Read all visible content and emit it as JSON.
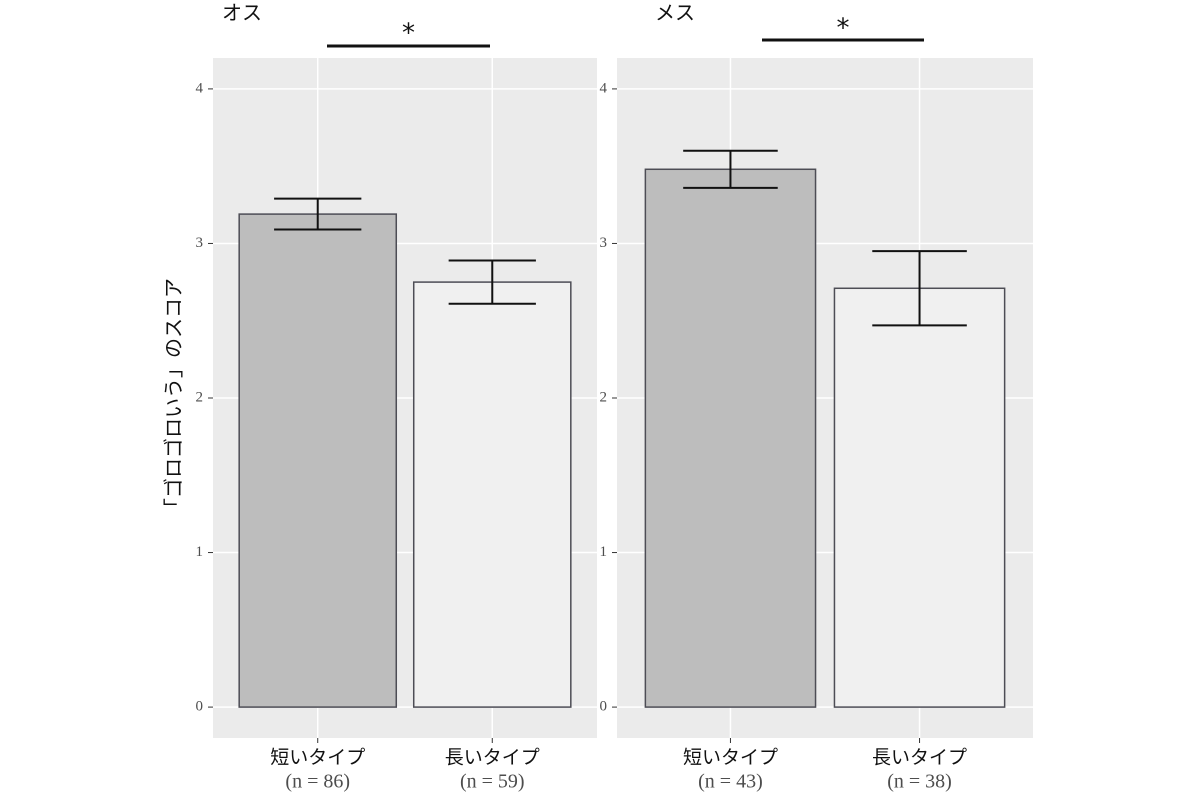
{
  "chart_data": [
    {
      "type": "bar",
      "title": "オス",
      "y_label": "「ゴロゴロいう」のスコア",
      "categories": [
        "短いタイプ",
        "長いタイプ"
      ],
      "sample_labels": [
        "(n = 86)",
        "(n = 59)"
      ],
      "values": [
        3.19,
        2.75
      ],
      "errors": [
        0.1,
        0.14
      ],
      "colors": [
        "#bdbdbd",
        "#f0f0f0"
      ],
      "ylim": [
        -0.2,
        4.2
      ],
      "yticks": [
        0,
        1,
        2,
        3,
        4
      ],
      "grid": true,
      "annotation": "*"
    },
    {
      "type": "bar",
      "title": "メス",
      "categories": [
        "短いタイプ",
        "長いタイプ"
      ],
      "sample_labels": [
        "(n = 43)",
        "(n = 38)"
      ],
      "values": [
        3.48,
        2.71
      ],
      "errors": [
        0.12,
        0.24
      ],
      "colors": [
        "#bdbdbd",
        "#f0f0f0"
      ],
      "ylim": [
        -0.2,
        4.2
      ],
      "yticks": [
        0,
        1,
        2,
        3,
        4
      ],
      "grid": true,
      "annotation": "*"
    }
  ]
}
